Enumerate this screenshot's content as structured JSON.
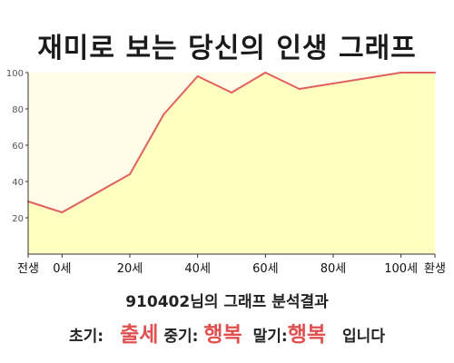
{
  "title": "재미로 보는 당신의 인생 그래프",
  "summary": {
    "user": "910402",
    "suffix": "님의 그래프 분석결과"
  },
  "result": {
    "early_label": "초기:",
    "early_value": "출세",
    "mid_label": "중기:",
    "mid_value": "행복",
    "late_label": "말기:",
    "late_value": "행복",
    "ending": "입니다"
  },
  "colors": {
    "line": "#e06060",
    "fill": "#ffffc0",
    "plot_bg": "#fffde8",
    "accent_text": "#e05050"
  },
  "chart_data": {
    "type": "area",
    "title": "재미로 보는 당신의 인생 그래프",
    "xlabel": "",
    "ylabel": "",
    "ylim": [
      0,
      100
    ],
    "xlim": [
      -10,
      110
    ],
    "yticks": [
      20,
      40,
      60,
      80,
      100
    ],
    "xticks": [
      {
        "x": -10,
        "label": "전생"
      },
      {
        "x": 0,
        "label": "0세"
      },
      {
        "x": 20,
        "label": "20세"
      },
      {
        "x": 40,
        "label": "40세"
      },
      {
        "x": 60,
        "label": "60세"
      },
      {
        "x": 80,
        "label": "80세"
      },
      {
        "x": 100,
        "label": "100세"
      },
      {
        "x": 110,
        "label": "환생"
      }
    ],
    "series": [
      {
        "x": [
          -10,
          0,
          20,
          30,
          40,
          50,
          60,
          70,
          80,
          90,
          100,
          110
        ],
        "values": [
          29,
          23,
          44,
          77,
          98,
          89,
          100,
          91,
          94,
          97,
          100,
          100
        ]
      }
    ],
    "grid": false,
    "legend": "none"
  }
}
